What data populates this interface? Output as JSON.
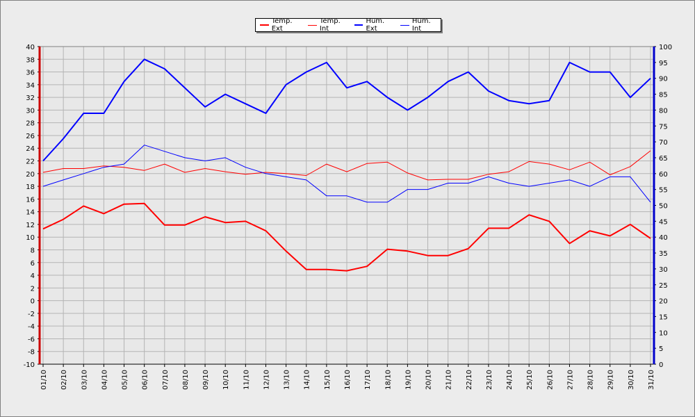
{
  "chart_data": {
    "type": "line",
    "x": [
      "01/10",
      "02/10",
      "03/10",
      "04/10",
      "05/10",
      "06/10",
      "07/10",
      "08/10",
      "09/10",
      "10/10",
      "11/10",
      "12/10",
      "13/10",
      "14/10",
      "15/10",
      "16/10",
      "17/10",
      "18/10",
      "19/10",
      "20/10",
      "21/10",
      "22/10",
      "23/10",
      "24/10",
      "25/10",
      "26/10",
      "27/10",
      "28/10",
      "29/10",
      "30/10",
      "31/10"
    ],
    "y_left": {
      "min": -10,
      "max": 40,
      "step": 2
    },
    "y_right": {
      "min": 0,
      "max": 100,
      "step": 5
    },
    "grid": true,
    "legend_position": "top-center",
    "series": [
      {
        "name": "Temp. Ext",
        "axis": "left",
        "color": "#ff0000",
        "width": 2,
        "values": [
          11.3,
          12.8,
          14.9,
          13.7,
          15.2,
          15.3,
          11.9,
          11.9,
          13.2,
          12.3,
          12.5,
          11.0,
          7.8,
          4.9,
          4.9,
          4.7,
          5.4,
          8.1,
          7.8,
          7.1,
          7.1,
          8.2,
          11.4,
          11.4,
          13.5,
          12.5,
          9.0,
          11.0,
          10.2,
          12.0,
          9.8
        ]
      },
      {
        "name": "Temp. Int",
        "axis": "left",
        "color": "#ff0000",
        "width": 1,
        "values": [
          20.2,
          20.8,
          20.8,
          21.2,
          21.0,
          20.5,
          21.5,
          20.2,
          20.8,
          20.3,
          19.9,
          20.2,
          20.0,
          19.7,
          21.5,
          20.3,
          21.6,
          21.8,
          20.1,
          19.0,
          19.1,
          19.1,
          19.9,
          20.3,
          21.9,
          21.5,
          20.6,
          21.8,
          19.8,
          21.1,
          23.6
        ]
      },
      {
        "name": "Hum. Ext",
        "axis": "right",
        "color": "#0000ff",
        "width": 2,
        "values": [
          64,
          71,
          79,
          79,
          89,
          96,
          93,
          87,
          81,
          85,
          82,
          79,
          88,
          92,
          95,
          87,
          89,
          84,
          80,
          84,
          89,
          92,
          86,
          83,
          82,
          83,
          95,
          92,
          92,
          84,
          90
        ]
      },
      {
        "name": "Hum. Int",
        "axis": "right",
        "color": "#0000ff",
        "width": 1,
        "values": [
          56,
          58,
          60,
          62,
          63,
          69,
          67,
          65,
          64,
          65,
          62,
          60,
          59,
          58,
          53,
          53,
          51,
          51,
          55,
          55,
          57,
          57,
          59,
          57,
          56,
          57,
          58,
          56,
          59,
          59,
          51
        ]
      }
    ]
  }
}
